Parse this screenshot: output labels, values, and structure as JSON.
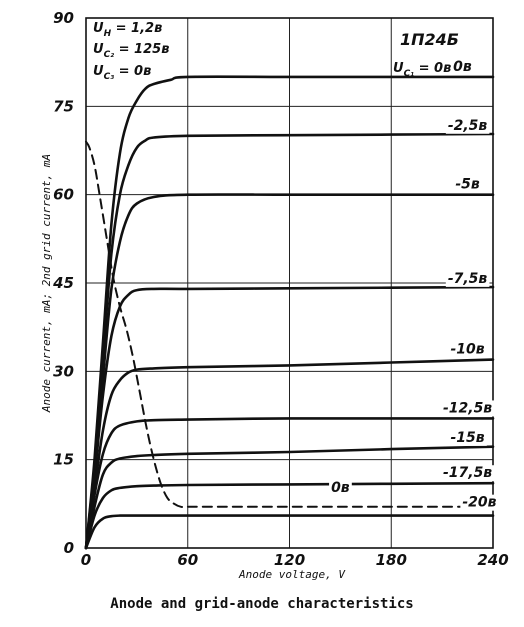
{
  "caption": "Anode and grid-anode characteristics",
  "tube": "1П24Б",
  "conditions": [
    {
      "sym": "U",
      "sub": "H",
      "val": " = 1,2в"
    },
    {
      "sym": "U",
      "sub": "C₂",
      "val": " = 125в"
    },
    {
      "sym": "U",
      "sub": "C₃",
      "val": " = 0в"
    }
  ],
  "param_label": {
    "sym": "U",
    "sub": "C₁",
    "val": " = 0в"
  },
  "chart_data": {
    "type": "line",
    "title": "",
    "xlabel": "Anode voltage, V",
    "ylabel": "Anode current, mA; 2nd grid current, mA",
    "xlim": [
      0,
      240
    ],
    "ylim": [
      0,
      90
    ],
    "xticks": [
      0,
      60,
      120,
      180,
      240
    ],
    "yticks": [
      0,
      15,
      30,
      45,
      60,
      75,
      90
    ],
    "xtick_labels": [
      "0",
      "60",
      "120",
      "180",
      "240"
    ],
    "ytick_labels": [
      "0",
      "15",
      "30",
      "45",
      "60",
      "75",
      "90"
    ],
    "grid": true,
    "series": [
      {
        "name": "0в",
        "style": "solid",
        "x": [
          0,
          5,
          10,
          15,
          20,
          25,
          30,
          35,
          40,
          50,
          60,
          120,
          180,
          240
        ],
        "y": [
          0,
          15,
          35,
          55,
          67,
          73,
          76,
          78,
          78.8,
          79.5,
          80,
          80,
          80,
          80
        ]
      },
      {
        "name": "-2,5в",
        "style": "solid",
        "x": [
          0,
          5,
          10,
          15,
          20,
          25,
          30,
          35,
          40,
          60,
          120,
          180,
          240
        ],
        "y": [
          0,
          14,
          32,
          50,
          60,
          65,
          68,
          69.2,
          69.7,
          70,
          70.1,
          70.2,
          70.3
        ]
      },
      {
        "name": "-5в",
        "style": "solid",
        "x": [
          0,
          5,
          10,
          15,
          20,
          25,
          30,
          40,
          60,
          120,
          180,
          240
        ],
        "y": [
          0,
          13,
          29,
          44,
          52,
          56.5,
          58.5,
          59.6,
          60,
          60,
          60,
          60
        ]
      },
      {
        "name": "-7,5в",
        "style": "solid",
        "x": [
          0,
          5,
          10,
          15,
          20,
          25,
          30,
          40,
          60,
          120,
          180,
          240
        ],
        "y": [
          0,
          12,
          26,
          36,
          41,
          43,
          43.8,
          44,
          44,
          44.1,
          44.2,
          44.3
        ]
      },
      {
        "name": "-10в",
        "style": "solid",
        "x": [
          0,
          5,
          10,
          15,
          20,
          25,
          30,
          40,
          60,
          120,
          180,
          240
        ],
        "y": [
          0,
          10,
          20,
          26,
          28.5,
          29.8,
          30.3,
          30.5,
          30.7,
          31,
          31.5,
          32
        ]
      },
      {
        "name": "-12,5в",
        "style": "solid",
        "x": [
          0,
          5,
          10,
          15,
          20,
          30,
          40,
          60,
          120,
          180,
          240
        ],
        "y": [
          0,
          9,
          16,
          19.5,
          20.8,
          21.5,
          21.7,
          21.8,
          22,
          22,
          22
        ]
      },
      {
        "name": "-15в",
        "style": "solid",
        "x": [
          0,
          5,
          10,
          15,
          20,
          30,
          40,
          60,
          120,
          180,
          240
        ],
        "y": [
          0,
          7,
          12.5,
          14.5,
          15.2,
          15.6,
          15.8,
          16,
          16.3,
          16.8,
          17.2
        ]
      },
      {
        "name": "-17,5в",
        "style": "solid",
        "x": [
          0,
          5,
          10,
          15,
          20,
          30,
          40,
          60,
          120,
          180,
          240
        ],
        "y": [
          0,
          5.5,
          8.5,
          9.8,
          10.2,
          10.5,
          10.6,
          10.7,
          10.8,
          10.9,
          11
        ]
      },
      {
        "name": "-20в",
        "style": "solid",
        "x": [
          0,
          5,
          10,
          15,
          20,
          30,
          60,
          120,
          180,
          240
        ],
        "y": [
          0,
          3.5,
          5,
          5.4,
          5.5,
          5.5,
          5.5,
          5.5,
          5.5,
          5.5
        ]
      },
      {
        "name": "0в",
        "style": "dashed",
        "x": [
          0,
          2,
          5,
          8,
          12,
          16,
          20,
          24,
          28,
          32,
          36,
          40,
          44,
          48,
          52,
          56,
          60,
          70,
          90,
          120,
          180,
          240
        ],
        "y": [
          69,
          68,
          65,
          60,
          53,
          46,
          41,
          37,
          32,
          26,
          20,
          15,
          11,
          8.5,
          7.5,
          7,
          7,
          7,
          7,
          7,
          7,
          7
        ]
      }
    ],
    "annotations": [
      {
        "text": "0в",
        "x": 222,
        "y": 80
      },
      {
        "text": "-2,5в",
        "x": 225,
        "y": 70
      },
      {
        "text": "-5в",
        "x": 225,
        "y": 60
      },
      {
        "text": "-7,5в",
        "x": 225,
        "y": 44
      },
      {
        "text": "-10в",
        "x": 225,
        "y": 32
      },
      {
        "text": "-12,5в",
        "x": 225,
        "y": 22
      },
      {
        "text": "-15в",
        "x": 225,
        "y": 17
      },
      {
        "text": "-17,5в",
        "x": 225,
        "y": 11
      },
      {
        "text": "0в",
        "x": 150,
        "y": 8.5
      },
      {
        "text": "-20в",
        "x": 232,
        "y": 6
      }
    ]
  }
}
